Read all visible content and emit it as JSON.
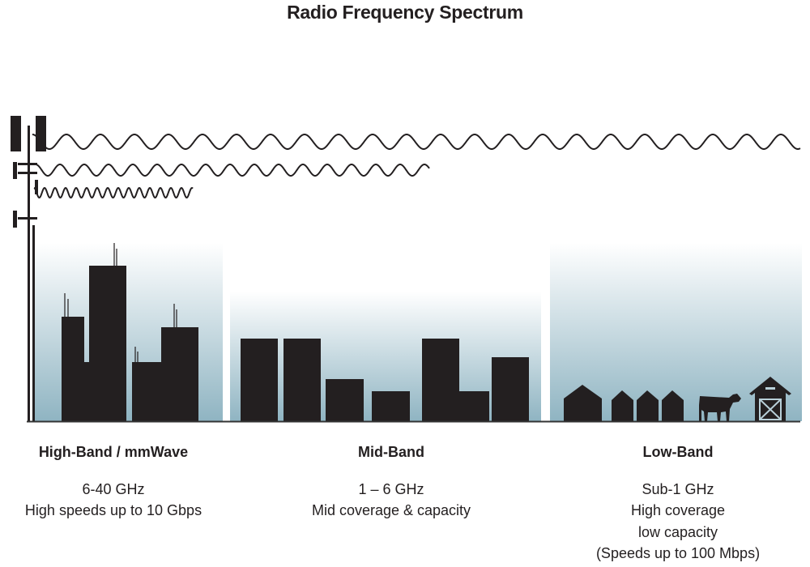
{
  "title": "Radio Frequency Spectrum",
  "colors": {
    "silhouette": "#231f20",
    "gradient_bottom": "#8fb4c2",
    "gradient_top": "#ffffff"
  },
  "bands": [
    {
      "name": "High-Band / mmWave",
      "lines": [
        "6-40 GHz",
        "High speeds up to 10 Gbps"
      ]
    },
    {
      "name": "Mid-Band",
      "lines": [
        "1 – 6 GHz",
        "Mid coverage & capacity"
      ]
    },
    {
      "name": "Low-Band",
      "lines": [
        "Sub-1 GHz",
        "High coverage",
        "low capacity",
        "(Speeds up to 100 Mbps)"
      ]
    }
  ]
}
